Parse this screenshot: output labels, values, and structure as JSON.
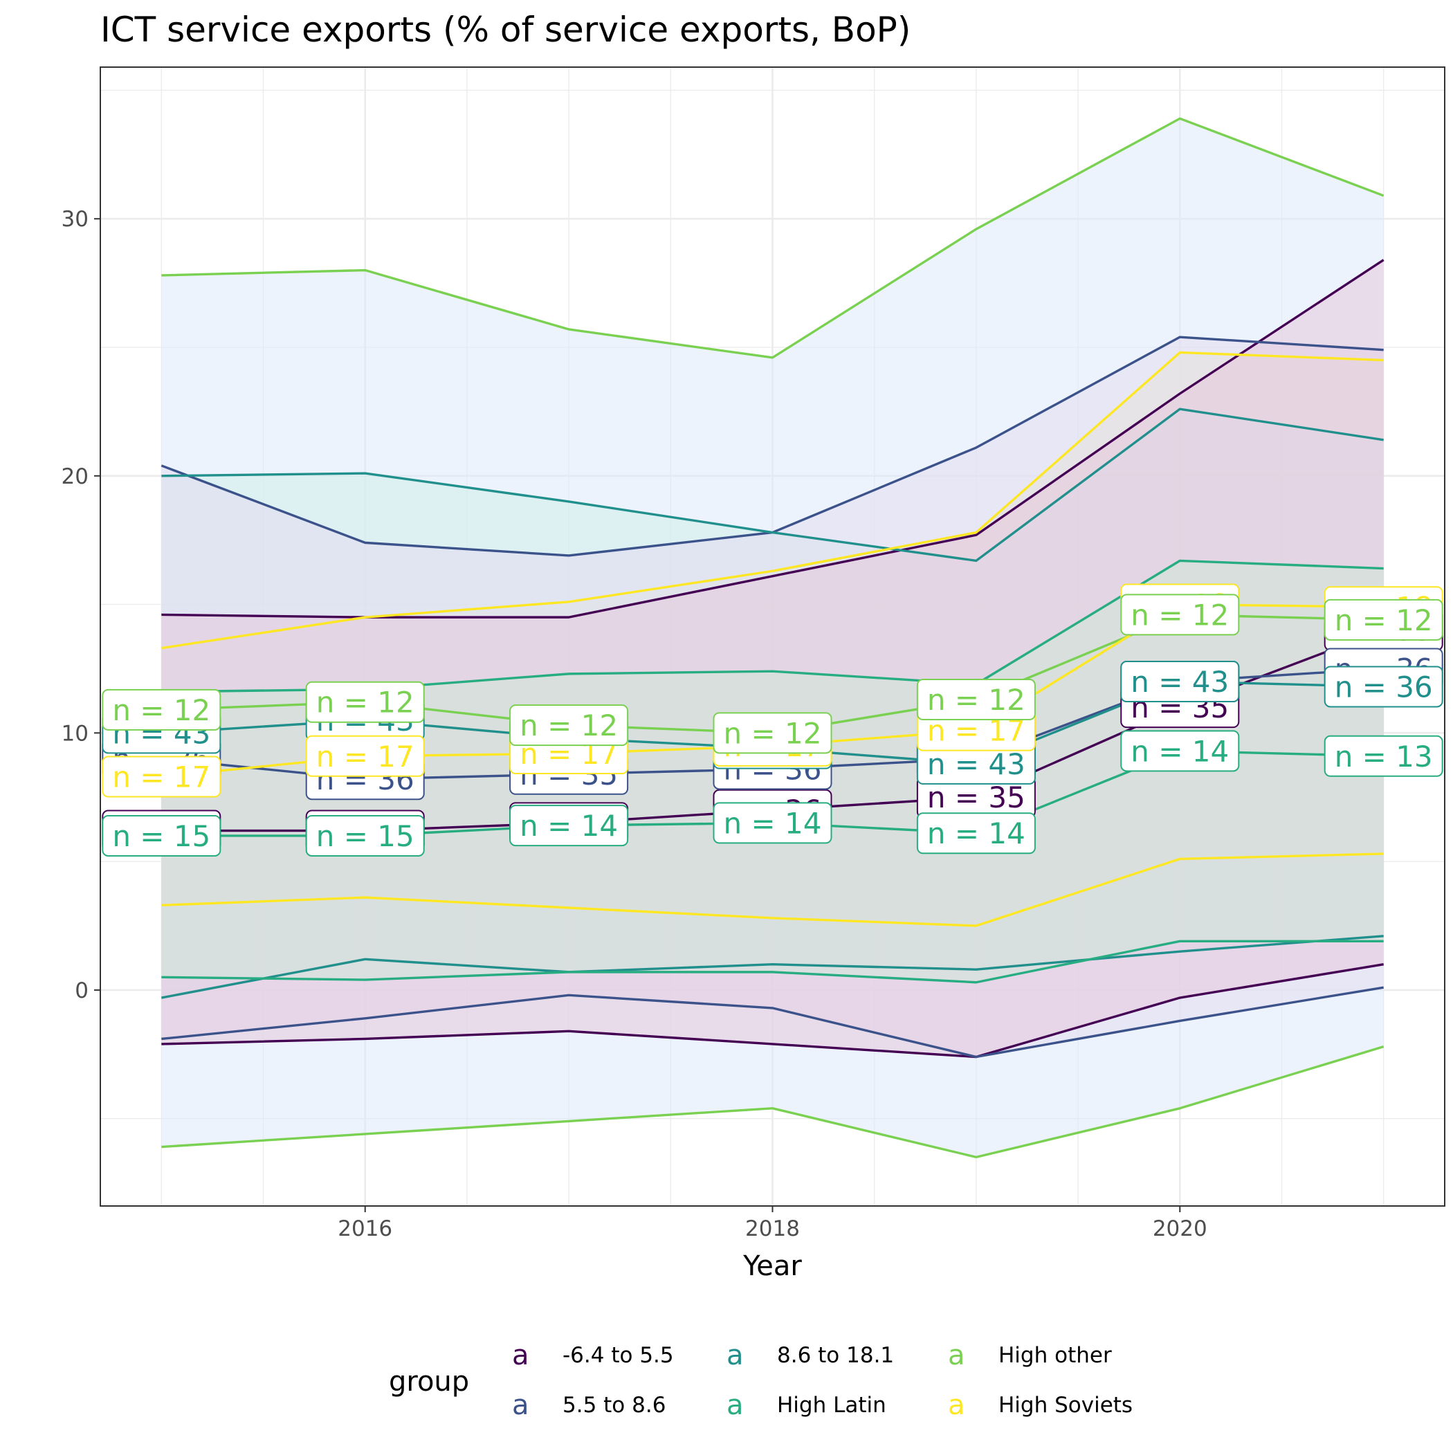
{
  "chart_data": {
    "type": "line",
    "title": "ICT service exports (% of service exports, BoP)",
    "xlabel": "Year",
    "ylabel": "",
    "x": [
      2015,
      2016,
      2017,
      2018,
      2019,
      2020,
      2021
    ],
    "x_ticks": [
      2016,
      2018,
      2020
    ],
    "y_ticks": [
      0,
      10,
      20,
      30
    ],
    "xlim": [
      2014.7,
      2021.3
    ],
    "ylim": [
      -8.4,
      35.9
    ],
    "grid": true,
    "legend": {
      "title": "group",
      "position": "bottom",
      "key_glyph": "a",
      "columns": [
        [
          "-6.4 to 5.5",
          "5.5 to 8.6"
        ],
        [
          "8.6 to 18.1",
          "High Latin"
        ],
        [
          "High other",
          "High Soviets"
        ]
      ]
    },
    "series": [
      {
        "name": "-6.4 to 5.5",
        "color": "#440154",
        "fill": "#e6c8dc",
        "mean": [
          6.2,
          6.2,
          6.5,
          7.0,
          7.5,
          11.0,
          14.0
        ],
        "lower": [
          -2.1,
          -1.9,
          -1.6,
          -2.1,
          -2.6,
          -0.3,
          1.0
        ],
        "upper": [
          14.6,
          14.5,
          14.5,
          16.1,
          17.7,
          23.2,
          28.4
        ],
        "n_labels": [
          "n = 39",
          "n = 39",
          "n = 38",
          "n = 36",
          "n = 35",
          "n = 35",
          "n = 35"
        ]
      },
      {
        "name": "5.5 to 8.6",
        "color": "#3b528b",
        "fill": "#e3ddf0",
        "mean": [
          9.0,
          8.2,
          8.4,
          8.6,
          9.0,
          12.0,
          12.5
        ],
        "lower": [
          -1.9,
          -1.1,
          -0.2,
          -0.7,
          -2.6,
          -1.2,
          0.1
        ],
        "upper": [
          20.4,
          17.4,
          16.9,
          17.8,
          21.1,
          25.4,
          24.9
        ],
        "n_labels": [
          "n = 36",
          "n = 36",
          "n = 35",
          "n = 36",
          "n = 36",
          "n = 36",
          "n = 36"
        ]
      },
      {
        "name": "8.6 to 18.1",
        "color": "#21908c",
        "fill": "#d2ece9",
        "mean": [
          10.0,
          10.5,
          9.8,
          9.4,
          8.8,
          12.0,
          11.8
        ],
        "lower": [
          -0.3,
          1.2,
          0.7,
          1.0,
          0.8,
          1.5,
          2.1
        ],
        "upper": [
          20.0,
          20.1,
          19.0,
          17.8,
          16.7,
          22.6,
          21.4
        ],
        "n_labels": [
          "n = 43",
          "n = 43",
          "n = 43",
          "n = 43",
          "n = 43",
          "n = 43",
          "n = 36"
        ]
      },
      {
        "name": "High Latin",
        "color": "#27ad81",
        "fill": "#cfe8d8",
        "mean": [
          6.0,
          6.0,
          6.4,
          6.5,
          6.1,
          9.3,
          9.1
        ],
        "lower": [
          0.5,
          0.4,
          0.7,
          0.7,
          0.3,
          1.9,
          1.9
        ],
        "upper": [
          11.6,
          11.7,
          12.3,
          12.4,
          11.9,
          16.7,
          16.4
        ],
        "n_labels": [
          "n = 15",
          "n = 15",
          "n = 14",
          "n = 14",
          "n = 14",
          "n = 14",
          "n = 13"
        ]
      },
      {
        "name": "High other",
        "color": "#7ad151",
        "fill": "#ddeafb",
        "mean": [
          10.9,
          11.2,
          10.3,
          10.0,
          11.3,
          14.6,
          14.4
        ],
        "lower": [
          -6.1,
          -5.6,
          -5.1,
          -4.6,
          -6.5,
          -4.6,
          -2.2
        ],
        "upper": [
          27.8,
          28.0,
          25.7,
          24.6,
          29.6,
          33.9,
          30.9
        ],
        "n_labels": [
          "n = 12",
          "n = 12",
          "n = 12",
          "n = 12",
          "n = 12",
          "n = 12",
          "n = 12"
        ]
      },
      {
        "name": "High Soviets",
        "color": "#fde725",
        "fill": "#ece9c0",
        "mean": [
          8.3,
          9.1,
          9.2,
          9.5,
          10.1,
          15.0,
          14.9
        ],
        "lower": [
          3.3,
          3.6,
          3.2,
          2.8,
          2.5,
          5.1,
          5.3
        ],
        "upper": [
          13.3,
          14.5,
          15.1,
          16.3,
          17.8,
          24.8,
          24.5
        ],
        "n_labels": [
          "n = 17",
          "n = 17",
          "n = 17",
          "n = 17",
          "n = 17",
          "n = 18",
          "n = 18"
        ]
      }
    ]
  }
}
